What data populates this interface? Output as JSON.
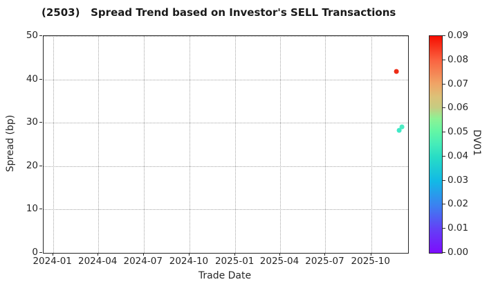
{
  "chart_data": {
    "type": "scatter",
    "title": "(2503)   Spread Trend based on Investor's SELL Transactions",
    "xlabel": "Trade Date",
    "ylabel": "Spread (bp)",
    "grid": true,
    "grid_style": "dotted",
    "background_color": "#ffffff",
    "ylim": [
      0,
      50
    ],
    "yticks": [
      0,
      10,
      20,
      30,
      40,
      50
    ],
    "x_domain": [
      "2023-12-13",
      "2025-12-14"
    ],
    "xticks": [
      {
        "label": "2024-01",
        "date": "2024-01-01"
      },
      {
        "label": "2024-04",
        "date": "2024-04-01"
      },
      {
        "label": "2024-07",
        "date": "2024-07-01"
      },
      {
        "label": "2024-10",
        "date": "2024-10-01"
      },
      {
        "label": "2025-01",
        "date": "2025-01-01"
      },
      {
        "label": "2025-04",
        "date": "2025-04-01"
      },
      {
        "label": "2025-07",
        "date": "2025-07-01"
      },
      {
        "label": "2025-10",
        "date": "2025-10-01"
      }
    ],
    "points": [
      {
        "date": "2025-11-20",
        "spread": 41.8,
        "dv01": 0.088,
        "color": "#ed2d17"
      },
      {
        "date": "2025-11-26",
        "spread": 28.2,
        "dv01": 0.044,
        "color": "#3fe9c6"
      },
      {
        "date": "2025-12-02",
        "spread": 29.0,
        "dv01": 0.046,
        "color": "#4decc3"
      }
    ],
    "point_diameter": 6.8,
    "colorbar": {
      "label": "DV01",
      "min": 0.0,
      "max": 0.09,
      "ticks": [
        "0.00",
        "0.01",
        "0.02",
        "0.03",
        "0.04",
        "0.05",
        "0.06",
        "0.07",
        "0.08",
        "0.09"
      ],
      "gradient_stops": [
        {
          "pos": 0.0,
          "color": "#7d0dfc"
        },
        {
          "pos": 0.11,
          "color": "#6340f6"
        },
        {
          "pos": 0.22,
          "color": "#3b82f0"
        },
        {
          "pos": 0.33,
          "color": "#12b9e6"
        },
        {
          "pos": 0.44,
          "color": "#27dcc6"
        },
        {
          "pos": 0.5,
          "color": "#45ecb9"
        },
        {
          "pos": 0.56,
          "color": "#63f6a5"
        },
        {
          "pos": 0.62,
          "color": "#8ef294"
        },
        {
          "pos": 0.67,
          "color": "#c6cc82"
        },
        {
          "pos": 0.72,
          "color": "#dcc178"
        },
        {
          "pos": 0.78,
          "color": "#f0a466"
        },
        {
          "pos": 0.89,
          "color": "#fa6240"
        },
        {
          "pos": 1.0,
          "color": "#f60d00"
        }
      ]
    },
    "style_colors": {
      "spine": "#262626",
      "grid": "#a3a3a3",
      "tick_label": "#262626",
      "title": "#1a1a1a"
    }
  }
}
